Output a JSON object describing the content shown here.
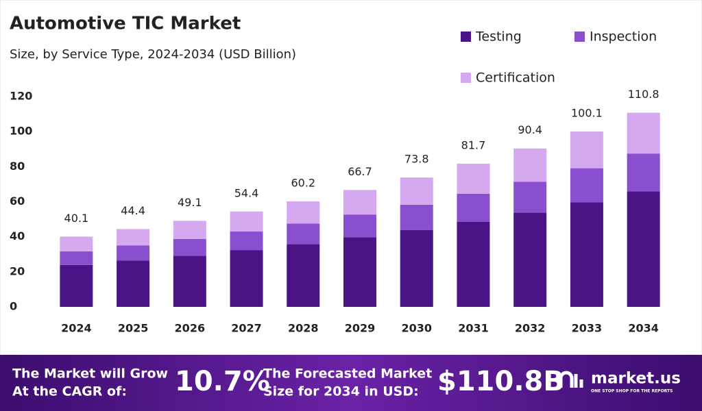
{
  "chart_data": {
    "type": "stacked_bar",
    "title": "Automotive TIC Market",
    "subtitle": "Size, by Service Type, 2024-2034 (USD Billion)",
    "categories": [
      "2024",
      "2025",
      "2026",
      "2027",
      "2028",
      "2029",
      "2030",
      "2031",
      "2032",
      "2033",
      "2034"
    ],
    "series": [
      {
        "name": "Testing",
        "color": "#4a1486",
        "values": [
          23.9,
          26.4,
          29.2,
          32.4,
          35.8,
          39.7,
          43.9,
          48.6,
          53.8,
          59.6,
          65.9
        ]
      },
      {
        "name": "Inspection",
        "color": "#8a4fcf",
        "values": [
          7.8,
          8.7,
          9.6,
          10.6,
          11.7,
          13.0,
          14.4,
          15.9,
          17.6,
          19.5,
          21.6
        ]
      },
      {
        "name": "Certification",
        "color": "#d4a9f0",
        "values": [
          8.4,
          9.3,
          10.3,
          11.4,
          12.7,
          14.0,
          15.5,
          17.2,
          19.0,
          21.0,
          23.3
        ]
      }
    ],
    "totals": [
      40.1,
      44.4,
      49.1,
      54.4,
      60.2,
      66.7,
      73.8,
      81.7,
      90.4,
      100.1,
      110.8
    ],
    "ylim": [
      0,
      120
    ],
    "yticks": [
      0,
      20,
      40,
      60,
      80,
      100,
      120
    ],
    "grid": false
  },
  "footer": {
    "cagr_text": [
      "The Market will Grow",
      "At the CAGR of:"
    ],
    "cagr": "10.7%",
    "forecast_text": [
      "The Forecasted Market",
      "Size for 2034 in USD:"
    ],
    "forecast": "$110.8B",
    "brand": "market.us",
    "tagline": "ONE STOP SHOP FOR THE REPORTS"
  }
}
